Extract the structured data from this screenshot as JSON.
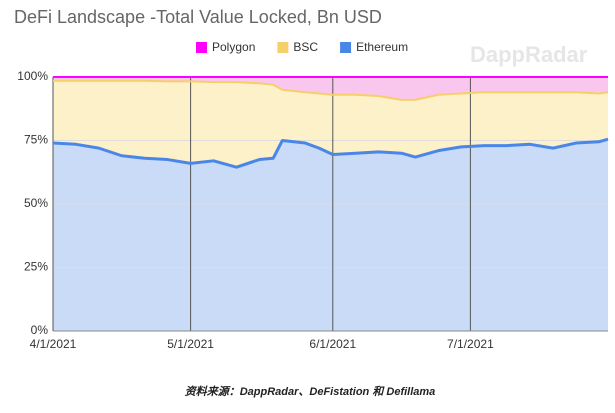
{
  "chart_data": {
    "type": "stacked_area",
    "title": "DeFi Landscape -Total Value Locked, Bn USD",
    "watermark": "DappRadar",
    "caption": "资料来源：DappRadar、DeFistation 和 Defillama",
    "x": [
      "4/1/2021",
      "4/6/2021",
      "4/11/2021",
      "4/16/2021",
      "4/21/2021",
      "4/26/2021",
      "5/1/2021",
      "5/6/2021",
      "5/11/2021",
      "5/16/2021",
      "5/19/2021",
      "5/21/2021",
      "5/26/2021",
      "5/29/2021",
      "6/1/2021",
      "6/6/2021",
      "6/11/2021",
      "6/16/2021",
      "6/19/2021",
      "6/24/2021",
      "6/29/2021",
      "7/4/2021",
      "7/9/2021",
      "7/14/2021",
      "7/19/2021",
      "7/24/2021",
      "7/29/2021",
      "7/31/2021"
    ],
    "series": [
      {
        "name": "Ethereum",
        "color": "#4a86e8",
        "fill": "#c9dbf7",
        "values": [
          74,
          73.5,
          72,
          69,
          68,
          67.5,
          66,
          67,
          64.5,
          67.5,
          68,
          75,
          74,
          72,
          69.5,
          70,
          70.5,
          70,
          68.5,
          71,
          72.5,
          73,
          73,
          73.5,
          72,
          74,
          74.5,
          75.5
        ]
      },
      {
        "name": "BSC",
        "color": "#f6cf6a",
        "fill": "#fdf1c9",
        "values": [
          24.5,
          25,
          26.5,
          29.5,
          30.5,
          30.8,
          32.3,
          31,
          33.5,
          30,
          29,
          20,
          20,
          21.5,
          23.5,
          23,
          22,
          21,
          22.5,
          22,
          21,
          21,
          21,
          20.5,
          22,
          20,
          19,
          18.5
        ]
      },
      {
        "name": "Polygon",
        "color": "#ff00ff",
        "fill": "#f9c6ee",
        "values": [
          1.5,
          1.5,
          1.5,
          1.5,
          1.5,
          1.7,
          1.7,
          2,
          2,
          2.5,
          3,
          5,
          6,
          6.5,
          7,
          7,
          7.5,
          9,
          9,
          7,
          6.5,
          6,
          6,
          6,
          6,
          6,
          6.5,
          6
        ]
      }
    ],
    "legend_order": [
      2,
      1,
      0
    ],
    "xlim": [
      "4/1/2021",
      "7/31/2021"
    ],
    "xticks": [
      "4/1/2021",
      "5/1/2021",
      "6/1/2021",
      "7/1/2021"
    ],
    "ylim": [
      0,
      100
    ],
    "yticks": [
      {
        "value": 0,
        "label": "0%"
      },
      {
        "value": 25,
        "label": "25%"
      },
      {
        "value": 50,
        "label": "50%"
      },
      {
        "value": 75,
        "label": "75%"
      },
      {
        "value": 100,
        "label": "100%"
      }
    ],
    "grid": true
  }
}
